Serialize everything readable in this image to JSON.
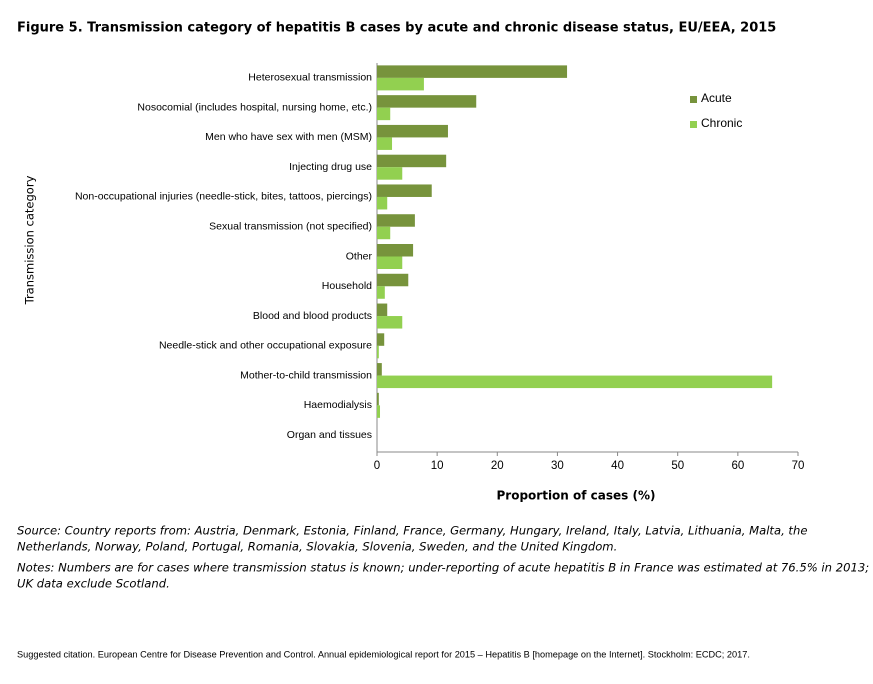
{
  "chart_data": {
    "type": "hbar",
    "title": "Figure 5. Transmission  category of hepatitis B cases by acute and chronic disease status, EU/EEA, 2015",
    "categories": [
      "Heterosexual transmission",
      "Nosocomial (includes hospital, nursing home, etc.)",
      "Men who have sex with men (MSM)",
      "Injecting drug use",
      "Non-occupational injuries (needle-stick, bites, tattoos, piercings)",
      "Sexual transmission (not specified)",
      "Other",
      "Household",
      "Blood and blood products",
      "Needle-stick and other occupational exposure",
      "Mother-to-child transmission",
      "Haemodialysis",
      "Organ and tissues"
    ],
    "series": [
      {
        "name": "Acute",
        "color": "#77933c",
        "values": [
          31.6,
          16.5,
          11.8,
          11.5,
          9.1,
          6.3,
          6.0,
          5.2,
          1.7,
          1.2,
          0.8,
          0.3,
          0
        ]
      },
      {
        "name": "Chronic",
        "color": "#92d050",
        "values": [
          7.8,
          2.2,
          2.5,
          4.2,
          1.7,
          2.2,
          4.2,
          1.3,
          4.2,
          0.3,
          65.7,
          0.5,
          0
        ]
      }
    ],
    "xlabel": "Proportion of cases (%)",
    "ylabel": "Transmission category",
    "xlim": [
      0,
      70
    ],
    "xticks": [
      0,
      10,
      20,
      30,
      40,
      50,
      60,
      70
    ],
    "legend": "upper right",
    "source": [
      "Source: Country reports from: Austria, Denmark, Estonia, Finland, France, Germany, Hungary, Ireland, Italy, Latvia, Lithuania, Malta, the",
      "Netherlands, Norway, Poland, Portugal, Romania, Slovakia, Slovenia, Sweden, and the United Kingdom."
    ],
    "notes": [
      "Notes: Numbers are for cases where transmission status is known; under-reporting of acute hepatitis B in France was estimated at 76.5% in 2013;",
      "UK data exclude Scotland."
    ],
    "citation": "Suggested citation. European Centre for Disease Prevention and Control. Annual epidemiological report for 2015 – Hepatitis B [homepage on the Internet]. Stockholm: ECDC; 2017."
  }
}
